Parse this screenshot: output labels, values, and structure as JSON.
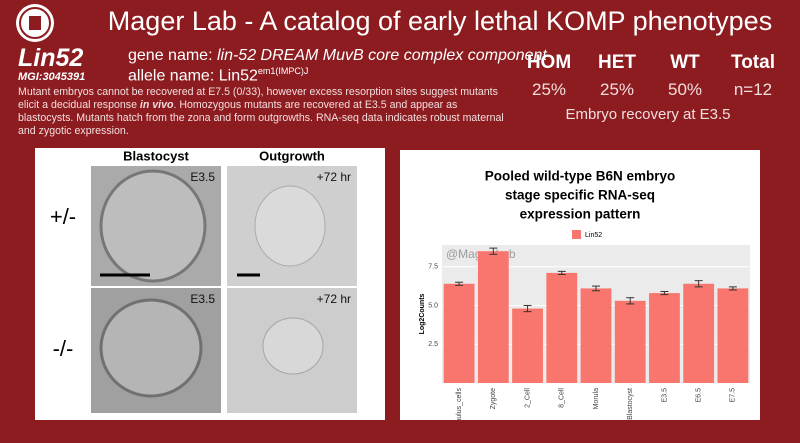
{
  "header": {
    "title": "Mager Lab - A catalog of early lethal KOMP phenotypes"
  },
  "gene": {
    "symbol": "Lin52",
    "mgi": "MGI:3045391",
    "gene_name_label": "gene name:",
    "gene_name": "lin-52 DREAM MuvB core complex component",
    "allele_label": "allele name:",
    "allele": "Lin52",
    "allele_sup": "em1(IMPC)J"
  },
  "stats": {
    "columns": [
      {
        "head": "HOM",
        "value": "25%"
      },
      {
        "head": "HET",
        "value": "25%"
      },
      {
        "head": "WT",
        "value": "50%"
      },
      {
        "head": "Total",
        "value": "n=12"
      }
    ],
    "caption": "Embryo recovery at E3.5"
  },
  "description": [
    "Mutant embryos cannot be recovered at E7.5 (0/33), however excess resorption sites suggest mutants elicit a decidual response ",
    "in vivo",
    ". Homozygous mutants are recovered at E3.5 and appear as blastocysts. Mutants hatch from the zona and form outgrowths. RNA-seq data indicates robust maternal and zygotic expression."
  ],
  "images": {
    "columns": [
      "Blastocyst",
      "Outgrowth"
    ],
    "rows": [
      "+/-",
      "-/-"
    ],
    "tags": [
      [
        "E3.5",
        "+72 hr"
      ],
      [
        "E3.5",
        "+72 hr"
      ]
    ]
  },
  "chart_data": {
    "type": "bar",
    "title": [
      "Pooled wild-type B6N embryo",
      "stage specific RNA-seq",
      "expression pattern"
    ],
    "watermark": "@Mager Lab",
    "ylabel": "Log2Counts",
    "categories": [
      "Cumulus_cells",
      "Zygote",
      "2_Cell",
      "8_Cell",
      "Morula",
      "Blastocyst",
      "E3.5",
      "E6.5",
      "E7.5"
    ],
    "series": [
      {
        "name": "Lin52",
        "color": "#f8766d",
        "values": [
          6.4,
          8.5,
          4.8,
          7.1,
          6.1,
          5.3,
          5.8,
          6.4,
          6.1
        ],
        "errors": [
          0.1,
          0.2,
          0.2,
          0.1,
          0.15,
          0.2,
          0.1,
          0.2,
          0.1
        ]
      }
    ],
    "ylim": [
      0,
      8.9
    ],
    "yticks": [
      {
        "value": 2.5,
        "label": "2.5"
      },
      {
        "value": 5,
        "label": "5.0"
      },
      {
        "value": 7.5,
        "label": "7.5"
      }
    ],
    "grid": true
  }
}
